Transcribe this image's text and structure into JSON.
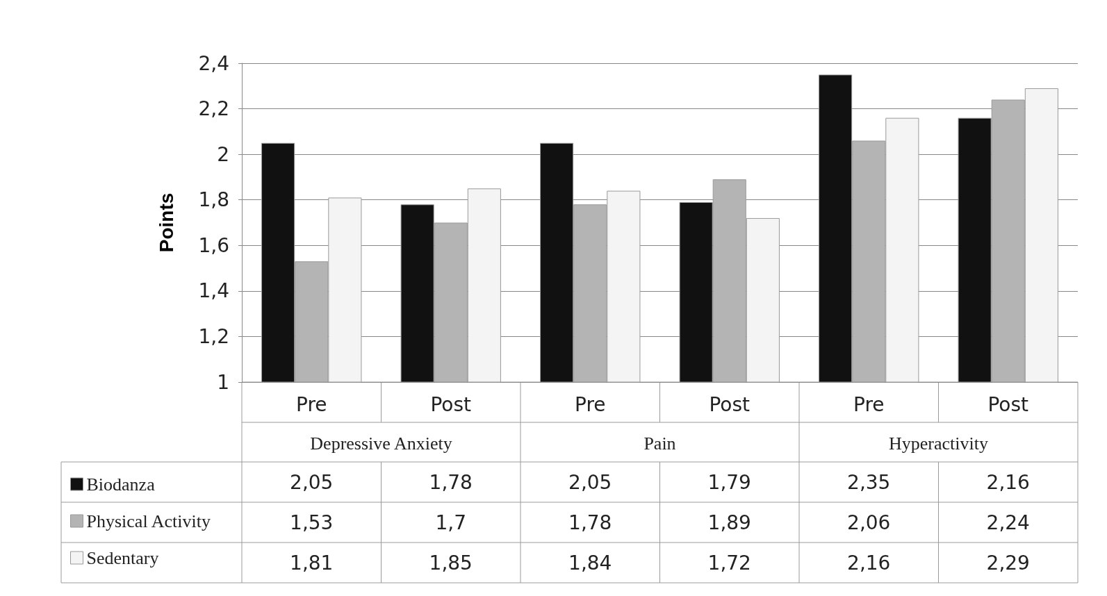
{
  "chart_data": {
    "type": "bar",
    "ylabel": "Points",
    "categories": [
      "Pre",
      "Post",
      "Pre",
      "Post",
      "Pre",
      "Post"
    ],
    "annotations": [
      "Depressive Anxiety",
      "Pain",
      "Hyperactivity"
    ],
    "series": [
      {
        "name": "Biodanza",
        "color": "#111111",
        "values": [
          2.05,
          1.78,
          2.05,
          1.79,
          2.35,
          2.16
        ],
        "value_labels": [
          "2,05",
          "1,78",
          "2,05",
          "1,79",
          "2,35",
          "2,16"
        ]
      },
      {
        "name": "Physical Activity",
        "color": "#b4b4b4",
        "values": [
          1.53,
          1.7,
          1.78,
          1.89,
          2.06,
          2.24
        ],
        "value_labels": [
          "1,53",
          "1,7",
          "1,78",
          "1,89",
          "2,06",
          "2,24"
        ]
      },
      {
        "name": "Sedentary",
        "color": "#f4f4f4",
        "values": [
          1.81,
          1.85,
          1.84,
          1.72,
          2.16,
          2.29
        ],
        "value_labels": [
          "1,81",
          "1,85",
          "1,84",
          "1,72",
          "2,16",
          "2,29"
        ]
      }
    ],
    "ylim": [
      1,
      2.4
    ],
    "yticks": [
      1,
      {
        "value": 1.2,
        "label": "1,2"
      },
      {
        "value": 1.4,
        "label": "1,4"
      },
      {
        "value": 1.6,
        "label": "1,6"
      },
      {
        "value": 1.8,
        "label": "1,8"
      },
      2,
      {
        "value": 2.2,
        "label": "2,2"
      },
      {
        "value": 2.4,
        "label": "2,4"
      }
    ],
    "grid": "y",
    "legend": "bottom left"
  }
}
